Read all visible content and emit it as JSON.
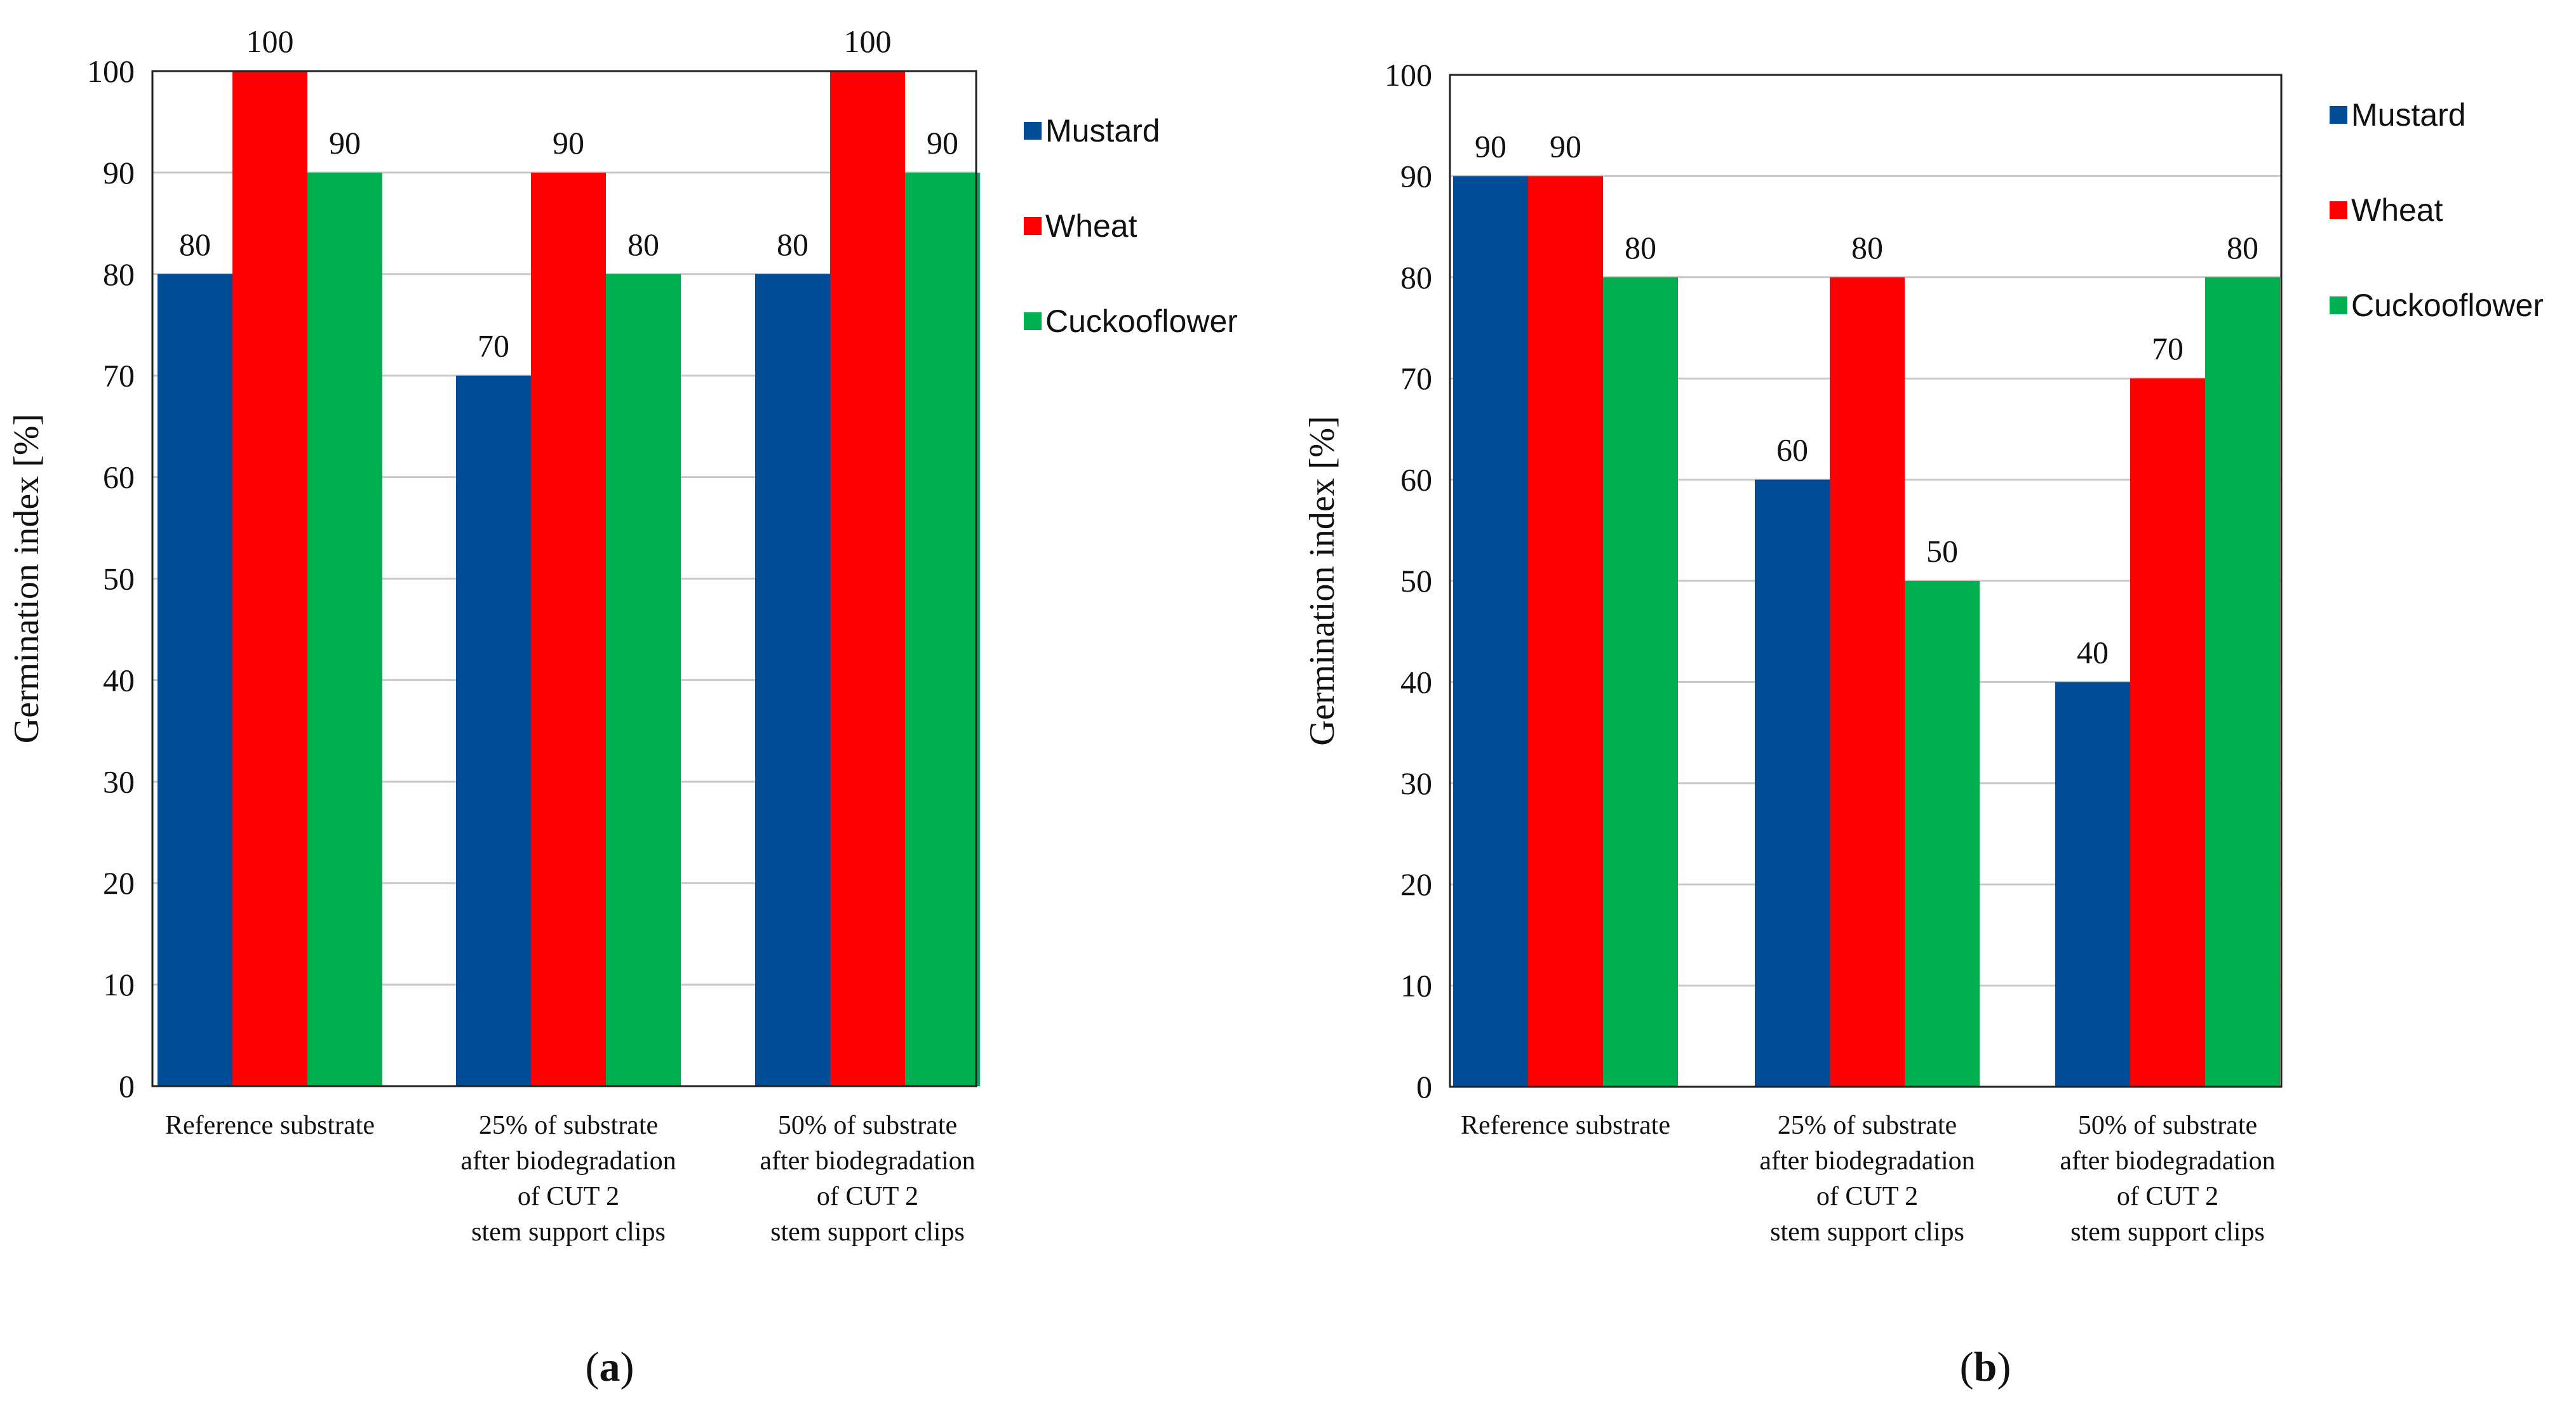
{
  "chart_data": [
    {
      "type": "bar",
      "panel_label": "a",
      "ylabel": "Germination index [%]",
      "ylim": [
        0,
        100
      ],
      "yticks": [
        "0",
        "10",
        "20",
        "30",
        "40",
        "50",
        "60",
        "70",
        "80",
        "90",
        "100"
      ],
      "categories": [
        [
          "Reference substrate"
        ],
        [
          "25% of substrate",
          "after biodegradation",
          "of CUT 2",
          "stem support clips"
        ],
        [
          "50% of substrate",
          "after biodegradation",
          "of CUT 2",
          "stem support clips"
        ]
      ],
      "series": [
        {
          "name": "Mustard",
          "color": "#004C97",
          "values": [
            80,
            70,
            80
          ]
        },
        {
          "name": "Wheat",
          "color": "#FF0000",
          "values": [
            100,
            90,
            100
          ]
        },
        {
          "name": "Cuckooflower",
          "color": "#00B050",
          "values": [
            90,
            80,
            90
          ]
        }
      ],
      "legend_position": "right",
      "grid": true
    },
    {
      "type": "bar",
      "panel_label": "b",
      "ylabel": "Germination index [%]",
      "ylim": [
        0,
        100
      ],
      "yticks": [
        "0",
        "10",
        "20",
        "30",
        "40",
        "50",
        "60",
        "70",
        "80",
        "90",
        "100"
      ],
      "categories": [
        [
          "Reference substrate"
        ],
        [
          "25% of substrate",
          "after biodegradation",
          "of CUT 2",
          "stem support clips"
        ],
        [
          "50%  of substrate",
          "after biodegradation",
          "of CUT 2",
          "stem support clips"
        ]
      ],
      "series": [
        {
          "name": "Mustard",
          "color": "#004C97",
          "values": [
            90,
            60,
            40
          ]
        },
        {
          "name": "Wheat",
          "color": "#FF0000",
          "values": [
            90,
            80,
            70
          ]
        },
        {
          "name": "Cuckooflower",
          "color": "#00B050",
          "values": [
            80,
            50,
            80
          ]
        }
      ],
      "legend_position": "right",
      "grid": true
    }
  ]
}
